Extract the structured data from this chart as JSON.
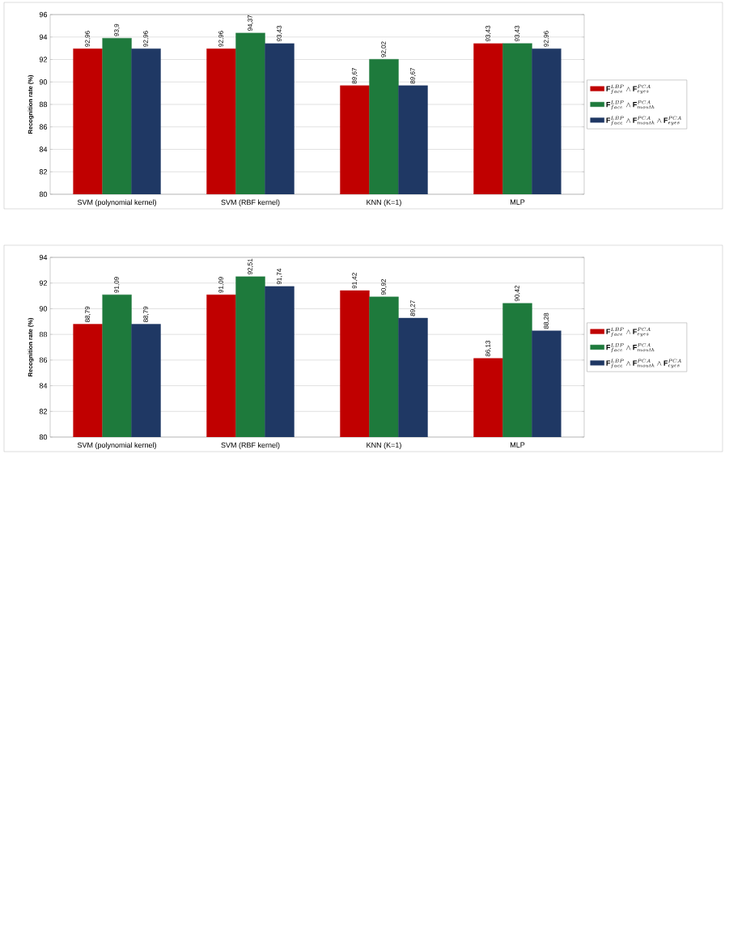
{
  "chart_data": [
    {
      "type": "bar",
      "ylabel": "Recognition rate (%)",
      "categories": [
        "SVM (polynomial kernel)",
        "SVM (RBF kernel)",
        "KNN (K=1)",
        "MLP"
      ],
      "ylim": [
        80,
        96
      ],
      "yticks": [
        80,
        82,
        84,
        86,
        88,
        90,
        92,
        94,
        96
      ],
      "grid": "y",
      "legend": "right",
      "series": [
        {
          "name": "\\mathbf{F}^{LBP}_{face} \\wedge \\mathbf{F}^{PCA}_{eyes}",
          "color": "#c00000",
          "values": [
            92.96,
            92.96,
            89.67,
            93.43
          ],
          "value_labels": [
            "92,96",
            "92,96",
            "89,67",
            "93,43"
          ]
        },
        {
          "name": "\\mathbf{F}^{LBP}_{face} \\wedge \\mathbf{F}^{PCA}_{mouth}",
          "color": "#1e7a3c",
          "values": [
            93.9,
            94.37,
            92.02,
            93.43
          ],
          "value_labels": [
            "93,9",
            "94,37",
            "92,02",
            "93,43"
          ]
        },
        {
          "name": "\\mathbf{F}^{LBP}_{face} \\wedge \\mathbf{F}^{PCA}_{mouth} \\wedge \\mathbf{F}^{PCA}_{eyes}",
          "color": "#1f3864",
          "values": [
            92.96,
            93.43,
            89.67,
            92.96
          ],
          "value_labels": [
            "92,96",
            "93,43",
            "89,67",
            "92,96"
          ]
        }
      ]
    },
    {
      "type": "bar",
      "ylabel": "Recognition rate (%)",
      "categories": [
        "SVM (polynomial kernel)",
        "SVM (RBF kernel)",
        "KNN (K=1)",
        "MLP"
      ],
      "ylim": [
        80,
        94
      ],
      "yticks": [
        80,
        82,
        84,
        86,
        88,
        90,
        92,
        94
      ],
      "grid": "y",
      "legend": "right",
      "series": [
        {
          "name": "\\mathbf{F}^{LBP}_{face} \\wedge \\mathbf{F}^{PCA}_{eyes}",
          "color": "#c00000",
          "values": [
            88.79,
            91.09,
            91.42,
            86.13
          ],
          "value_labels": [
            "88,79",
            "91,09",
            "91,42",
            "86,13"
          ]
        },
        {
          "name": "\\mathbf{F}^{LBP}_{face} \\wedge \\mathbf{F}^{PCA}_{mouth}",
          "color": "#1e7a3c",
          "values": [
            91.09,
            92.51,
            90.92,
            90.42
          ],
          "value_labels": [
            "91,09",
            "92,51",
            "90,92",
            "90,42"
          ]
        },
        {
          "name": "\\mathbf{F}^{LBP}_{face} \\wedge \\mathbf{F}^{PCA}_{mouth} \\wedge \\mathbf{F}^{PCA}_{eyes}",
          "color": "#1f3864",
          "values": [
            88.79,
            91.74,
            89.27,
            88.28
          ],
          "value_labels": [
            "88,79",
            "91,74",
            "89,27",
            "88,28"
          ]
        }
      ]
    }
  ]
}
